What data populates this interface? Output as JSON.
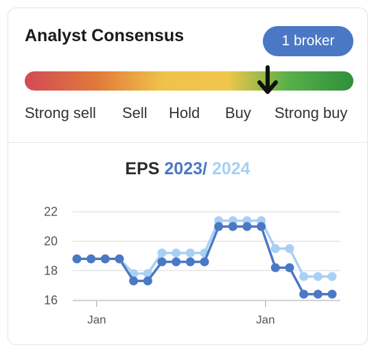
{
  "header": {
    "title": "Analyst Consensus",
    "broker_badge": "1 broker"
  },
  "consensus": {
    "labels": [
      "Strong sell",
      "Sell",
      "Hold",
      "Buy",
      "Strong buy"
    ],
    "indicator_value": 0.74,
    "colors": [
      "#d24a55",
      "#e07a3a",
      "#f0c24a",
      "#58b04a",
      "#2f8f3a"
    ]
  },
  "eps": {
    "title_prefix": "EPS",
    "year1": "2023",
    "separator": "/",
    "year2": "2024"
  },
  "chart_data": {
    "type": "line",
    "title": "EPS 2023 / 2024",
    "x": [
      0,
      1,
      2,
      3,
      4,
      5,
      6,
      7,
      8,
      9,
      10,
      11,
      12,
      13,
      14,
      15,
      16,
      17,
      18
    ],
    "series": [
      {
        "name": "2023",
        "color": "#4a78c4",
        "values": [
          18.8,
          18.8,
          18.8,
          18.8,
          17.3,
          17.3,
          18.6,
          18.6,
          18.6,
          18.6,
          21.0,
          21.0,
          21.0,
          21.0,
          18.2,
          18.2,
          16.4,
          16.4,
          16.4
        ]
      },
      {
        "name": "2024",
        "color": "#a8d0f5",
        "values": [
          18.8,
          18.8,
          18.8,
          18.8,
          17.8,
          17.8,
          19.2,
          19.2,
          19.2,
          19.2,
          21.4,
          21.4,
          21.4,
          21.4,
          19.5,
          19.5,
          17.6,
          17.6,
          17.6
        ]
      }
    ],
    "y_ticks": [
      16,
      18,
      20,
      22
    ],
    "ylim": [
      15.5,
      22.5
    ],
    "x_tick_labels": [
      {
        "index": 1.4,
        "label": "Jan"
      },
      {
        "index": 13.3,
        "label": "Jan"
      }
    ],
    "grid": true
  }
}
